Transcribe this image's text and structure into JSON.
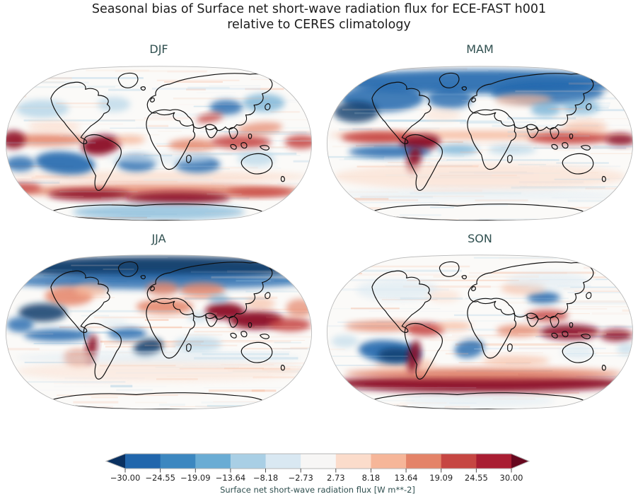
{
  "figure": {
    "title_line1": "Seasonal bias of Surface net short-wave radiation flux for ECE-FAST h001",
    "title_line2": "relative to CERES climatology"
  },
  "panels": [
    {
      "label": "DJF",
      "seed": 11,
      "blobs": [
        [
          210,
          152,
          200,
          7,
          0,
          "R1",
          0.75
        ],
        [
          210,
          171,
          195,
          9,
          0,
          "R3",
          0.8
        ],
        [
          118,
          176,
          55,
          7,
          0,
          "R5",
          0.9
        ],
        [
          235,
          180,
          70,
          8,
          0,
          "R5",
          0.9
        ],
        [
          345,
          173,
          45,
          6,
          0,
          "R4",
          0.85
        ],
        [
          28,
          167,
          25,
          7,
          0,
          "R4",
          0.8
        ],
        [
          210,
          199,
          115,
          11,
          0,
          "B3",
          0.6
        ],
        [
          60,
          103,
          55,
          8,
          0,
          "R3",
          0.85
        ],
        [
          16,
          103,
          16,
          12,
          0,
          "R5",
          0.85
        ],
        [
          133,
          110,
          26,
          13,
          -8,
          "R5",
          0.95
        ],
        [
          170,
          103,
          22,
          6,
          0,
          "R2",
          0.8
        ],
        [
          255,
          110,
          32,
          8,
          0,
          "R3",
          0.8
        ],
        [
          320,
          106,
          40,
          9,
          0,
          "R4",
          0.85
        ],
        [
          400,
          106,
          22,
          9,
          0,
          "R4",
          0.85
        ],
        [
          85,
          134,
          40,
          15,
          5,
          "B4",
          0.9
        ],
        [
          25,
          135,
          20,
          10,
          0,
          "B4",
          0.8
        ],
        [
          180,
          134,
          26,
          11,
          0,
          "B4",
          0.85
        ],
        [
          262,
          136,
          30,
          11,
          0,
          "B4",
          0.8
        ],
        [
          340,
          128,
          25,
          10,
          0,
          "B2",
          0.6
        ],
        [
          55,
          62,
          35,
          12,
          0,
          "B2",
          0.7
        ],
        [
          150,
          56,
          22,
          10,
          0,
          "B2",
          0.6
        ],
        [
          300,
          60,
          22,
          10,
          0,
          "B4",
          0.8
        ],
        [
          278,
          74,
          18,
          6,
          -10,
          "R4",
          0.8
        ],
        [
          350,
          54,
          28,
          12,
          0,
          "B3",
          0.7
        ],
        [
          345,
          88,
          30,
          8,
          -5,
          "R3",
          0.7
        ],
        [
          70,
          86,
          35,
          7,
          0,
          "R1",
          0.7
        ],
        [
          210,
          128,
          70,
          7,
          0,
          "B1",
          0.6
        ]
      ]
    },
    {
      "label": "MAM",
      "seed": 22,
      "blobs": [
        [
          210,
          26,
          200,
          16,
          0,
          "B4",
          0.9
        ],
        [
          80,
          48,
          55,
          18,
          0,
          "B4",
          0.85
        ],
        [
          170,
          48,
          30,
          14,
          0,
          "B4",
          0.8
        ],
        [
          300,
          40,
          75,
          16,
          0,
          "B4",
          0.8
        ],
        [
          45,
          66,
          30,
          14,
          0,
          "B5",
          0.8
        ],
        [
          210,
          97,
          200,
          6,
          0,
          "R2",
          0.8
        ],
        [
          75,
          100,
          50,
          8,
          0,
          "R4",
          0.9
        ],
        [
          130,
          107,
          27,
          11,
          -5,
          "R5",
          0.95
        ],
        [
          330,
          101,
          55,
          8,
          0,
          "R4",
          0.85
        ],
        [
          398,
          103,
          20,
          8,
          0,
          "R5",
          0.85
        ],
        [
          90,
          119,
          55,
          8,
          0,
          "B4",
          0.85
        ],
        [
          180,
          116,
          28,
          7,
          0,
          "B3",
          0.7
        ],
        [
          253,
          116,
          32,
          7,
          0,
          "B2",
          0.6
        ],
        [
          122,
          130,
          9,
          18,
          12,
          "R5",
          0.9
        ],
        [
          210,
          152,
          195,
          18,
          0,
          "R1",
          0.6
        ],
        [
          268,
          50,
          38,
          8,
          0,
          "R2",
          0.7
        ],
        [
          298,
          63,
          20,
          9,
          0,
          "B3",
          0.7
        ],
        [
          350,
          86,
          30,
          8,
          0,
          "R2",
          0.6
        ],
        [
          160,
          70,
          25,
          8,
          0,
          "R1",
          0.5
        ],
        [
          210,
          176,
          190,
          8,
          0,
          "B1",
          0.4
        ],
        [
          345,
          60,
          25,
          10,
          0,
          "B3",
          0.6
        ]
      ]
    },
    {
      "label": "JJA",
      "seed": 33,
      "blobs": [
        [
          210,
          22,
          205,
          15,
          0,
          "B5",
          0.95
        ],
        [
          210,
          40,
          205,
          11,
          0,
          "B4",
          0.8
        ],
        [
          90,
          60,
          32,
          13,
          0,
          "R3",
          0.85
        ],
        [
          120,
          52,
          22,
          9,
          0,
          "R2",
          0.7
        ],
        [
          215,
          50,
          22,
          9,
          0,
          "R3",
          0.8
        ],
        [
          218,
          74,
          38,
          10,
          0,
          "R3",
          0.85
        ],
        [
          268,
          52,
          30,
          10,
          0,
          "R3",
          0.8
        ],
        [
          298,
          80,
          26,
          11,
          0,
          "R5",
          0.95
        ],
        [
          340,
          92,
          36,
          12,
          0,
          "R5",
          0.95
        ],
        [
          385,
          98,
          28,
          9,
          0,
          "R4",
          0.85
        ],
        [
          398,
          76,
          18,
          12,
          0,
          "R3",
          0.7
        ],
        [
          55,
          82,
          32,
          12,
          0,
          "B5",
          0.85
        ],
        [
          25,
          98,
          18,
          10,
          0,
          "B4",
          0.8
        ],
        [
          75,
          112,
          45,
          8,
          0,
          "B4",
          0.85
        ],
        [
          168,
          110,
          26,
          8,
          0,
          "B4",
          0.8
        ],
        [
          196,
          128,
          20,
          11,
          -12,
          "B5",
          0.85
        ],
        [
          120,
          131,
          7,
          20,
          10,
          "R5",
          0.9
        ],
        [
          103,
          142,
          20,
          11,
          0,
          "R3",
          0.75
        ],
        [
          262,
          124,
          32,
          10,
          0,
          "B2",
          0.6
        ],
        [
          210,
          160,
          190,
          14,
          0,
          "R1",
          0.45
        ],
        [
          210,
          142,
          190,
          7,
          0,
          "B1",
          0.5
        ],
        [
          290,
          64,
          14,
          6,
          0,
          "B3",
          0.6
        ],
        [
          262,
          88,
          14,
          6,
          0,
          "B2",
          0.5
        ],
        [
          150,
          96,
          20,
          6,
          0,
          "B1",
          0.5
        ],
        [
          345,
          70,
          20,
          8,
          0,
          "R2",
          0.6
        ]
      ]
    },
    {
      "label": "SON",
      "seed": 44,
      "blobs": [
        [
          210,
          176,
          195,
          12,
          0,
          "R5",
          0.95
        ],
        [
          215,
          163,
          185,
          8,
          0,
          "R3",
          0.8
        ],
        [
          110,
          150,
          40,
          8,
          0,
          "R2",
          0.6
        ],
        [
          90,
          134,
          42,
          15,
          5,
          "B4",
          0.9
        ],
        [
          98,
          138,
          24,
          9,
          0,
          "B5",
          0.8
        ],
        [
          122,
          140,
          8,
          22,
          10,
          "R5",
          0.9
        ],
        [
          196,
          130,
          20,
          12,
          -10,
          "B4",
          0.8
        ],
        [
          80,
          100,
          50,
          7,
          0,
          "R3",
          0.75
        ],
        [
          137,
          104,
          26,
          9,
          0,
          "R4",
          0.85
        ],
        [
          175,
          100,
          24,
          6,
          0,
          "R2",
          0.7
        ],
        [
          262,
          106,
          30,
          8,
          0,
          "R3",
          0.75
        ],
        [
          330,
          108,
          40,
          10,
          0,
          "R5",
          0.9
        ],
        [
          392,
          112,
          22,
          8,
          0,
          "R5",
          0.85
        ],
        [
          295,
          62,
          22,
          8,
          0,
          "B4",
          0.85
        ],
        [
          268,
          50,
          30,
          8,
          0,
          "R2",
          0.6
        ],
        [
          300,
          86,
          28,
          8,
          0,
          "R4",
          0.8
        ],
        [
          100,
          52,
          55,
          14,
          0,
          "B1",
          0.6
        ],
        [
          300,
          40,
          55,
          12,
          0,
          "B1",
          0.5
        ],
        [
          162,
          60,
          22,
          8,
          0,
          "R1",
          0.6
        ],
        [
          340,
          134,
          22,
          10,
          0,
          "B1",
          0.6
        ],
        [
          258,
          146,
          45,
          7,
          0,
          "R2",
          0.6
        ],
        [
          210,
          199,
          100,
          8,
          0,
          "B1",
          0.5
        ],
        [
          30,
          120,
          18,
          8,
          0,
          "B2",
          0.5
        ],
        [
          405,
          130,
          12,
          8,
          0,
          "B2",
          0.5
        ]
      ]
    }
  ],
  "colorbar": {
    "label": "Surface net short-wave radiation flux [W m**-2]",
    "ticks": [
      "−30.00",
      "−24.55",
      "−19.09",
      "−13.64",
      "−8.18",
      "−2.73",
      "2.73",
      "8.18",
      "13.64",
      "19.09",
      "24.55",
      "30.00"
    ],
    "segment_colors": [
      "#2166ac",
      "#3c87c0",
      "#6aacd4",
      "#a9cfe5",
      "#d9e8f2",
      "#f7f6f5",
      "#fbdccb",
      "#f6b699",
      "#e48368",
      "#c64642",
      "#a91d32"
    ],
    "under_color": "#0a3161",
    "over_color": "#67081f"
  },
  "colors": {
    "figure_title": "#1c1c1c",
    "panel_title": "#2f4f4f",
    "tick_label": "#1f1f1f",
    "cbar_label": "#2f4f4f",
    "coastline": "#0d0d0d",
    "map_edge_fill": "#eaeaea",
    "map_edge_stroke": "#b8b8b8",
    "map_bg": "#fbfaf8",
    "palette": {
      "B5": "#0b3a6b",
      "B4": "#2267ad",
      "B3": "#66a9d2",
      "B2": "#a9cfe5",
      "B1": "#d9e8f2",
      "R1": "#fbdccb",
      "R2": "#f6b699",
      "R3": "#e48368",
      "R4": "#c54340",
      "R5": "#8c0f26"
    }
  },
  "chart_data": {
    "type": "heatmap",
    "title": "Seasonal bias of Surface net short-wave radiation flux for ECE-FAST h001 relative to CERES climatology",
    "panels": [
      "DJF",
      "MAM",
      "JJA",
      "SON"
    ],
    "layout": "2x2 grid of Robinson-projection world maps with shared horizontal colorbar",
    "colormap": "RdBu_r (diverging, blue = negative bias, red = positive bias)",
    "levels": [
      -30.0,
      -24.55,
      -19.09,
      -13.64,
      -8.18,
      -2.73,
      2.73,
      8.18,
      13.64,
      19.09,
      24.55,
      30.0
    ],
    "extend": "both",
    "colorbar_label": "Surface net short-wave radiation flux [W m**-2]",
    "units": "W m**-2"
  }
}
